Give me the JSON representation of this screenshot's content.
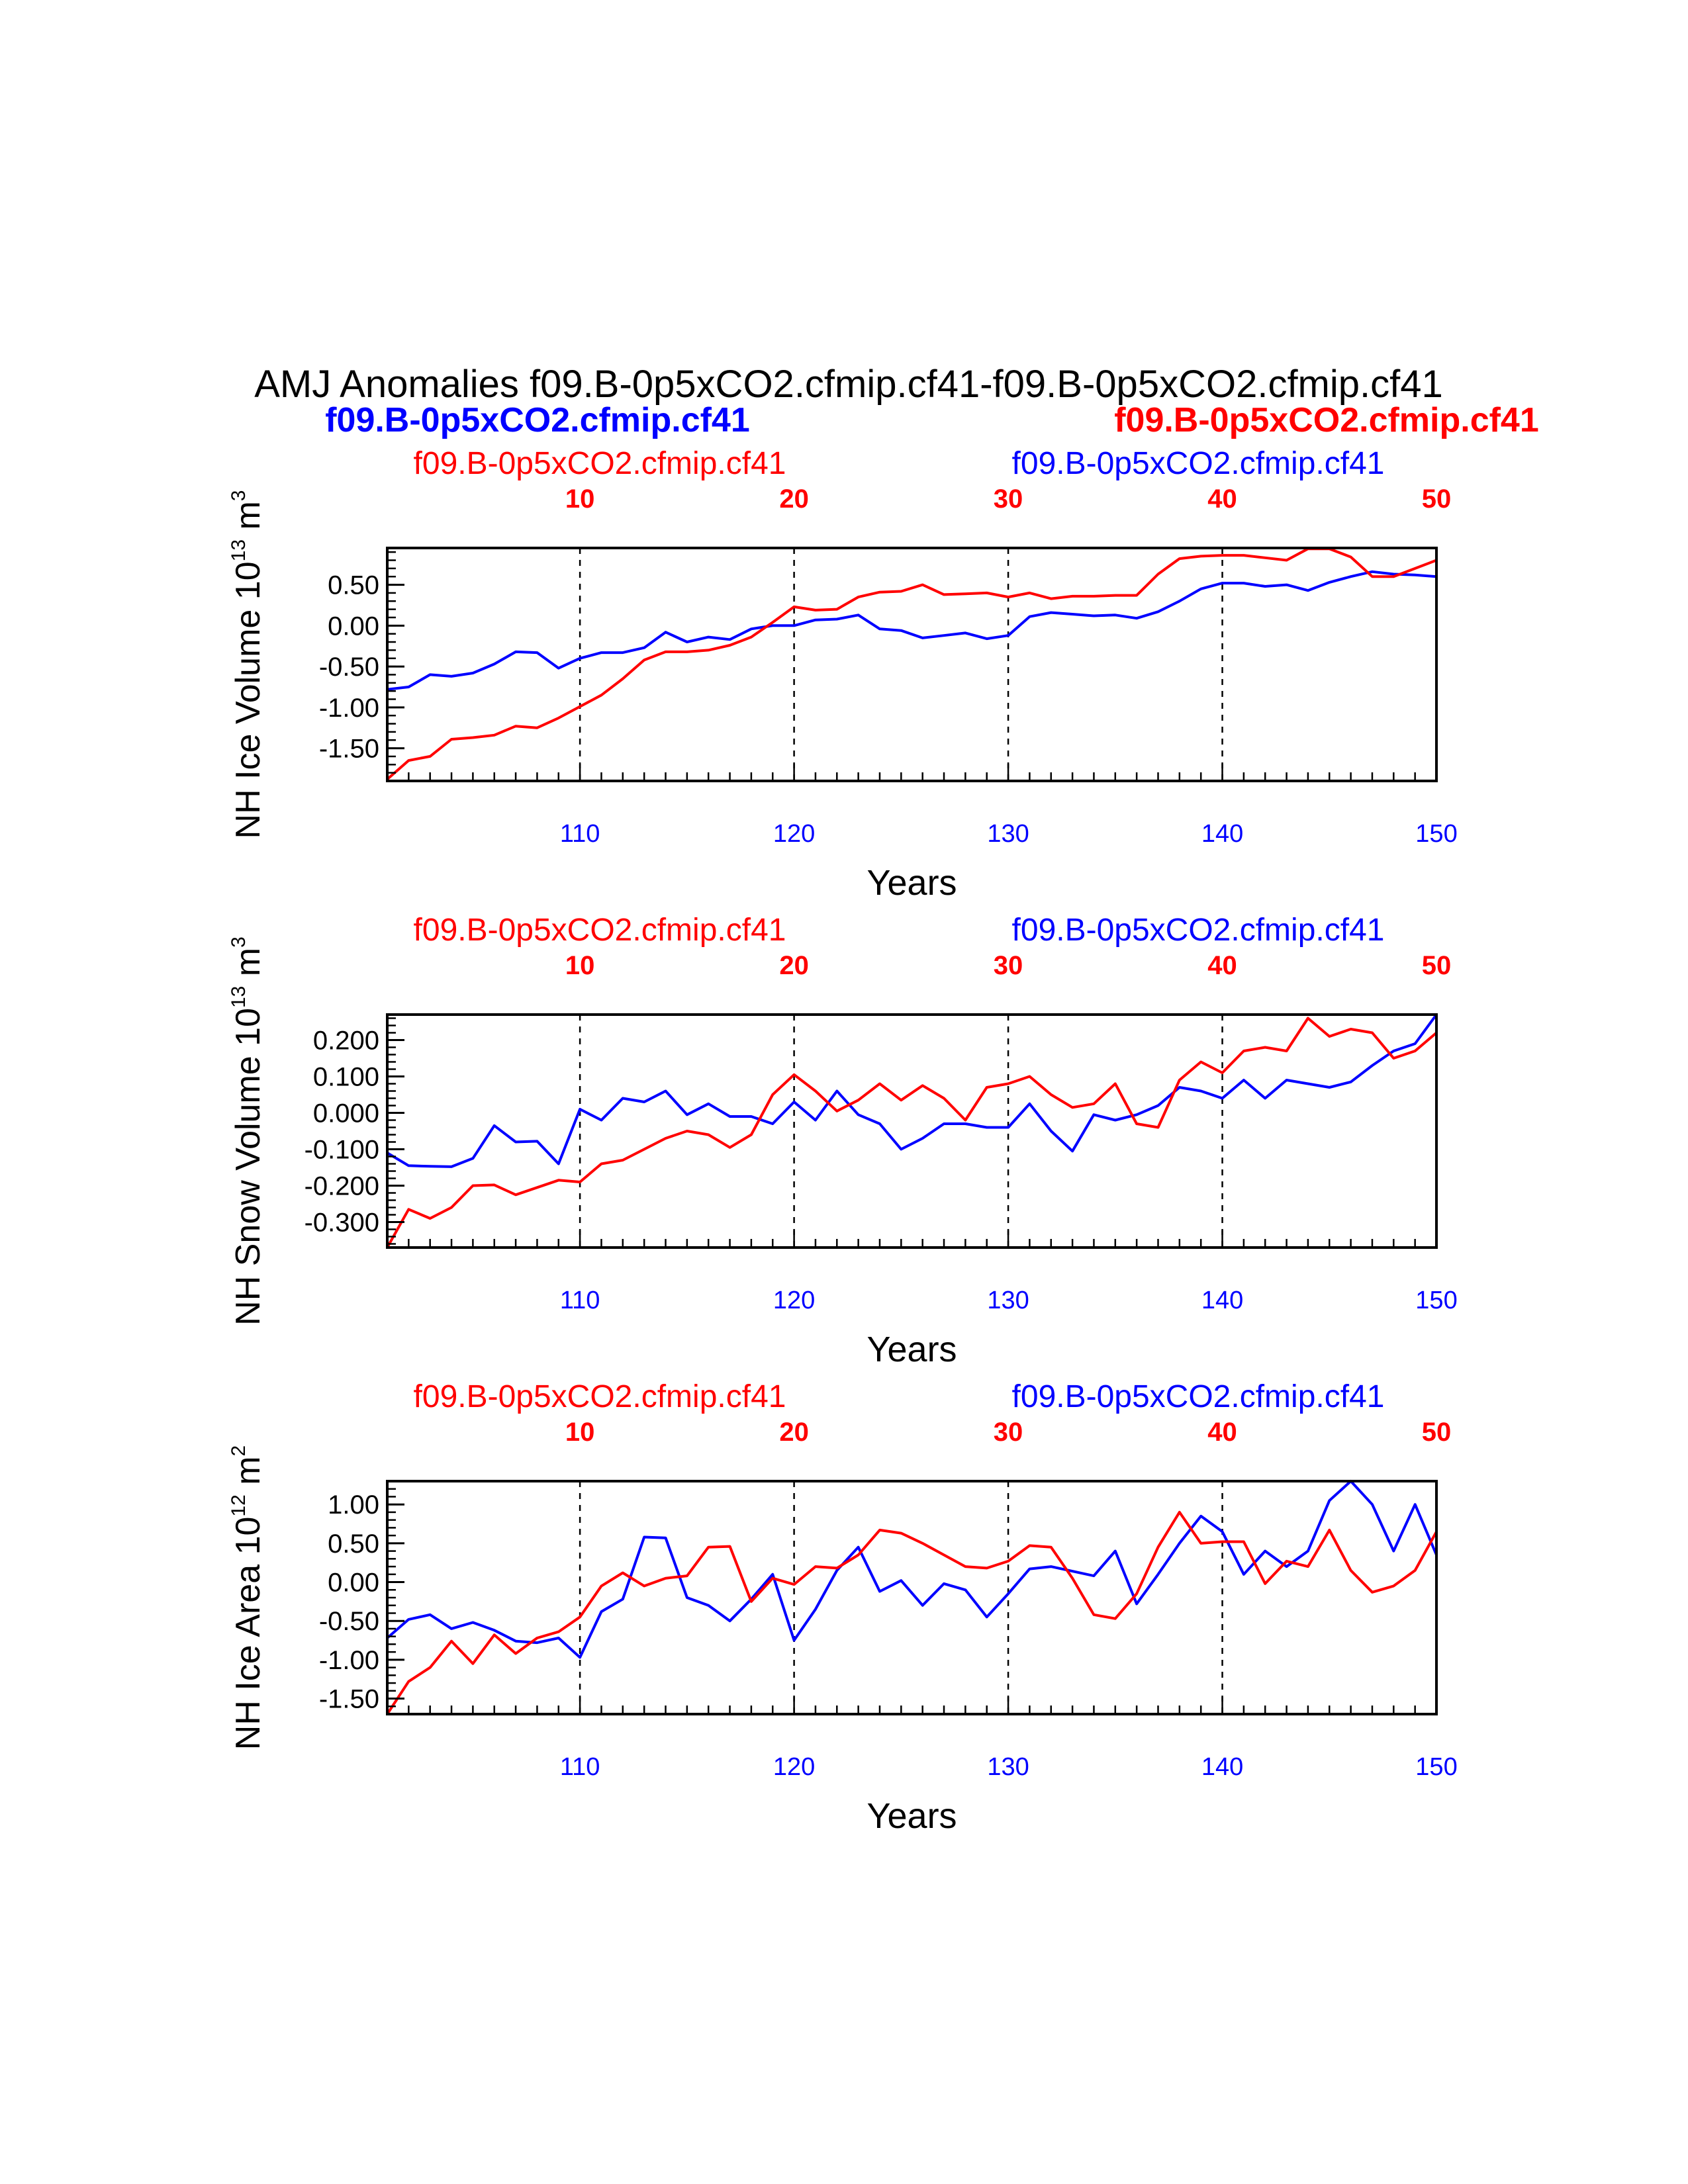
{
  "figure": {
    "title": "AMJ Anomalies f09.B-0p5xCO2.cfmip.cf41-f09.B-0p5xCO2.cfmip.cf41",
    "legend_left": "f09.B-0p5xCO2.cfmip.cf41",
    "legend_right": "f09.B-0p5xCO2.cfmip.cf41"
  },
  "colors": {
    "blue": "#0000ff",
    "red": "#ff0000",
    "black": "#000000"
  },
  "chart_data": [
    {
      "type": "line",
      "top_left_label": "f09.B-0p5xCO2.cfmip.cf41",
      "top_right_label": "f09.B-0p5xCO2.cfmip.cf41",
      "ylabel": "NH Ice Volume 10",
      "ylabel_exp": "13",
      "ylabel_unit": " m",
      "ylabel_unit_exp": "3",
      "xlabel": "Years",
      "xlim": [
        101,
        150
      ],
      "x_top_range": [
        1,
        50
      ],
      "ylim": [
        -1.9,
        0.95
      ],
      "yticks": [
        -1.5,
        -1.0,
        -0.5,
        0.0,
        0.5
      ],
      "ytick_labels": [
        "-1.50",
        "-1.00",
        "-0.50",
        "0.00",
        "0.50"
      ],
      "yminor_step": 0.1,
      "xticks_bottom": [
        110,
        120,
        130,
        140,
        150
      ],
      "xticks_top": [
        10,
        20,
        30,
        40,
        50
      ],
      "vlines": [
        110,
        120,
        130,
        140
      ],
      "series": [
        {
          "color": "blue",
          "values": [
            -0.78,
            -0.75,
            -0.6,
            -0.62,
            -0.58,
            -0.47,
            -0.32,
            -0.33,
            -0.52,
            -0.4,
            -0.33,
            -0.33,
            -0.27,
            -0.08,
            -0.2,
            -0.14,
            -0.17,
            -0.04,
            0.0,
            0.0,
            0.07,
            0.08,
            0.13,
            -0.04,
            -0.06,
            -0.15,
            -0.12,
            -0.09,
            -0.16,
            -0.12,
            0.11,
            0.16,
            0.14,
            0.12,
            0.13,
            0.09,
            0.17,
            0.3,
            0.45,
            0.52,
            0.52,
            0.48,
            0.5,
            0.43,
            0.53,
            0.6,
            0.66,
            0.63,
            0.62,
            0.6
          ]
        },
        {
          "color": "red",
          "values": [
            -1.88,
            -1.65,
            -1.6,
            -1.39,
            -1.37,
            -1.34,
            -1.23,
            -1.25,
            -1.13,
            -0.99,
            -0.85,
            -0.65,
            -0.42,
            -0.32,
            -0.32,
            -0.3,
            -0.24,
            -0.14,
            0.04,
            0.23,
            0.19,
            0.2,
            0.35,
            0.41,
            0.42,
            0.5,
            0.38,
            0.39,
            0.4,
            0.35,
            0.4,
            0.33,
            0.36,
            0.36,
            0.37,
            0.37,
            0.63,
            0.82,
            0.85,
            0.86,
            0.86,
            0.83,
            0.8,
            0.94,
            0.94,
            0.84,
            0.6,
            0.6,
            0.7,
            0.8
          ]
        }
      ]
    },
    {
      "type": "line",
      "top_left_label": "f09.B-0p5xCO2.cfmip.cf41",
      "top_right_label": "f09.B-0p5xCO2.cfmip.cf41",
      "ylabel": "NH Snow Volume 10",
      "ylabel_exp": "13",
      "ylabel_unit": " m",
      "ylabel_unit_exp": "3",
      "xlabel": "Years",
      "xlim": [
        101,
        150
      ],
      "x_top_range": [
        1,
        50
      ],
      "ylim": [
        -0.37,
        0.27
      ],
      "yticks": [
        -0.3,
        -0.2,
        -0.1,
        0.0,
        0.1,
        0.2
      ],
      "ytick_labels": [
        "-0.300",
        "-0.200",
        "-0.100",
        "0.000",
        "0.100",
        "0.200"
      ],
      "yminor_step": 0.02,
      "xticks_bottom": [
        110,
        120,
        130,
        140,
        150
      ],
      "xticks_top": [
        10,
        20,
        30,
        40,
        50
      ],
      "vlines": [
        110,
        120,
        130,
        140
      ],
      "series": [
        {
          "color": "blue",
          "values": [
            -0.11,
            -0.145,
            -0.147,
            -0.148,
            -0.125,
            -0.035,
            -0.08,
            -0.078,
            -0.14,
            0.01,
            -0.02,
            0.04,
            0.03,
            0.06,
            -0.005,
            0.025,
            -0.01,
            -0.01,
            -0.03,
            0.03,
            -0.02,
            0.06,
            -0.005,
            -0.03,
            -0.1,
            -0.07,
            -0.03,
            -0.03,
            -0.04,
            -0.04,
            0.025,
            -0.05,
            -0.105,
            -0.005,
            -0.02,
            -0.005,
            0.02,
            0.07,
            0.06,
            0.04,
            0.09,
            0.04,
            0.09,
            0.08,
            0.07,
            0.085,
            0.13,
            0.17,
            0.19,
            0.27
          ]
        },
        {
          "color": "red",
          "values": [
            -0.37,
            -0.265,
            -0.29,
            -0.26,
            -0.2,
            -0.198,
            -0.225,
            -0.205,
            -0.185,
            -0.19,
            -0.14,
            -0.13,
            -0.1,
            -0.07,
            -0.05,
            -0.06,
            -0.095,
            -0.06,
            0.05,
            0.105,
            0.06,
            0.005,
            0.035,
            0.08,
            0.035,
            0.075,
            0.04,
            -0.02,
            0.07,
            0.08,
            0.1,
            0.05,
            0.015,
            0.025,
            0.08,
            -0.03,
            -0.04,
            0.09,
            0.14,
            0.11,
            0.17,
            0.18,
            0.17,
            0.26,
            0.21,
            0.23,
            0.22,
            0.15,
            0.17,
            0.22
          ]
        }
      ]
    },
    {
      "type": "line",
      "top_left_label": "f09.B-0p5xCO2.cfmip.cf41",
      "top_right_label": "f09.B-0p5xCO2.cfmip.cf41",
      "ylabel": "NH Ice Area 10",
      "ylabel_exp": "12",
      "ylabel_unit": " m",
      "ylabel_unit_exp": "2",
      "xlabel": "Years",
      "xlim": [
        101,
        150
      ],
      "x_top_range": [
        1,
        50
      ],
      "ylim": [
        -1.7,
        1.3
      ],
      "yticks": [
        -1.5,
        -1.0,
        -0.5,
        0.0,
        0.5,
        1.0
      ],
      "ytick_labels": [
        "-1.50",
        "-1.00",
        "-0.50",
        "0.00",
        "0.50",
        "1.00"
      ],
      "yminor_step": 0.1,
      "xticks_bottom": [
        110,
        120,
        130,
        140,
        150
      ],
      "xticks_top": [
        10,
        20,
        30,
        40,
        50
      ],
      "vlines": [
        110,
        120,
        130,
        140
      ],
      "series": [
        {
          "color": "blue",
          "values": [
            -0.72,
            -0.48,
            -0.42,
            -0.6,
            -0.52,
            -0.62,
            -0.76,
            -0.78,
            -0.72,
            -0.97,
            -0.38,
            -0.22,
            0.58,
            0.57,
            -0.2,
            -0.3,
            -0.5,
            -0.22,
            0.1,
            -0.75,
            -0.35,
            0.15,
            0.45,
            -0.12,
            0.02,
            -0.3,
            -0.02,
            -0.1,
            -0.45,
            -0.15,
            0.17,
            0.2,
            0.14,
            0.08,
            0.4,
            -0.28,
            0.1,
            0.5,
            0.85,
            0.65,
            0.1,
            0.4,
            0.2,
            0.4,
            1.05,
            1.3,
            1.0,
            0.4,
            1.0,
            0.35
          ]
        },
        {
          "color": "red",
          "values": [
            -1.7,
            -1.28,
            -1.1,
            -0.76,
            -1.05,
            -0.68,
            -0.92,
            -0.72,
            -0.64,
            -0.45,
            -0.05,
            0.12,
            -0.05,
            0.05,
            0.08,
            0.45,
            0.46,
            -0.25,
            0.05,
            -0.03,
            0.2,
            0.18,
            0.35,
            0.67,
            0.63,
            0.5,
            0.35,
            0.2,
            0.18,
            0.27,
            0.47,
            0.45,
            0.05,
            -0.42,
            -0.47,
            -0.15,
            0.45,
            0.9,
            0.5,
            0.52,
            0.52,
            -0.02,
            0.27,
            0.2,
            0.67,
            0.15,
            -0.13,
            -0.05,
            0.15,
            0.65
          ]
        }
      ]
    }
  ]
}
